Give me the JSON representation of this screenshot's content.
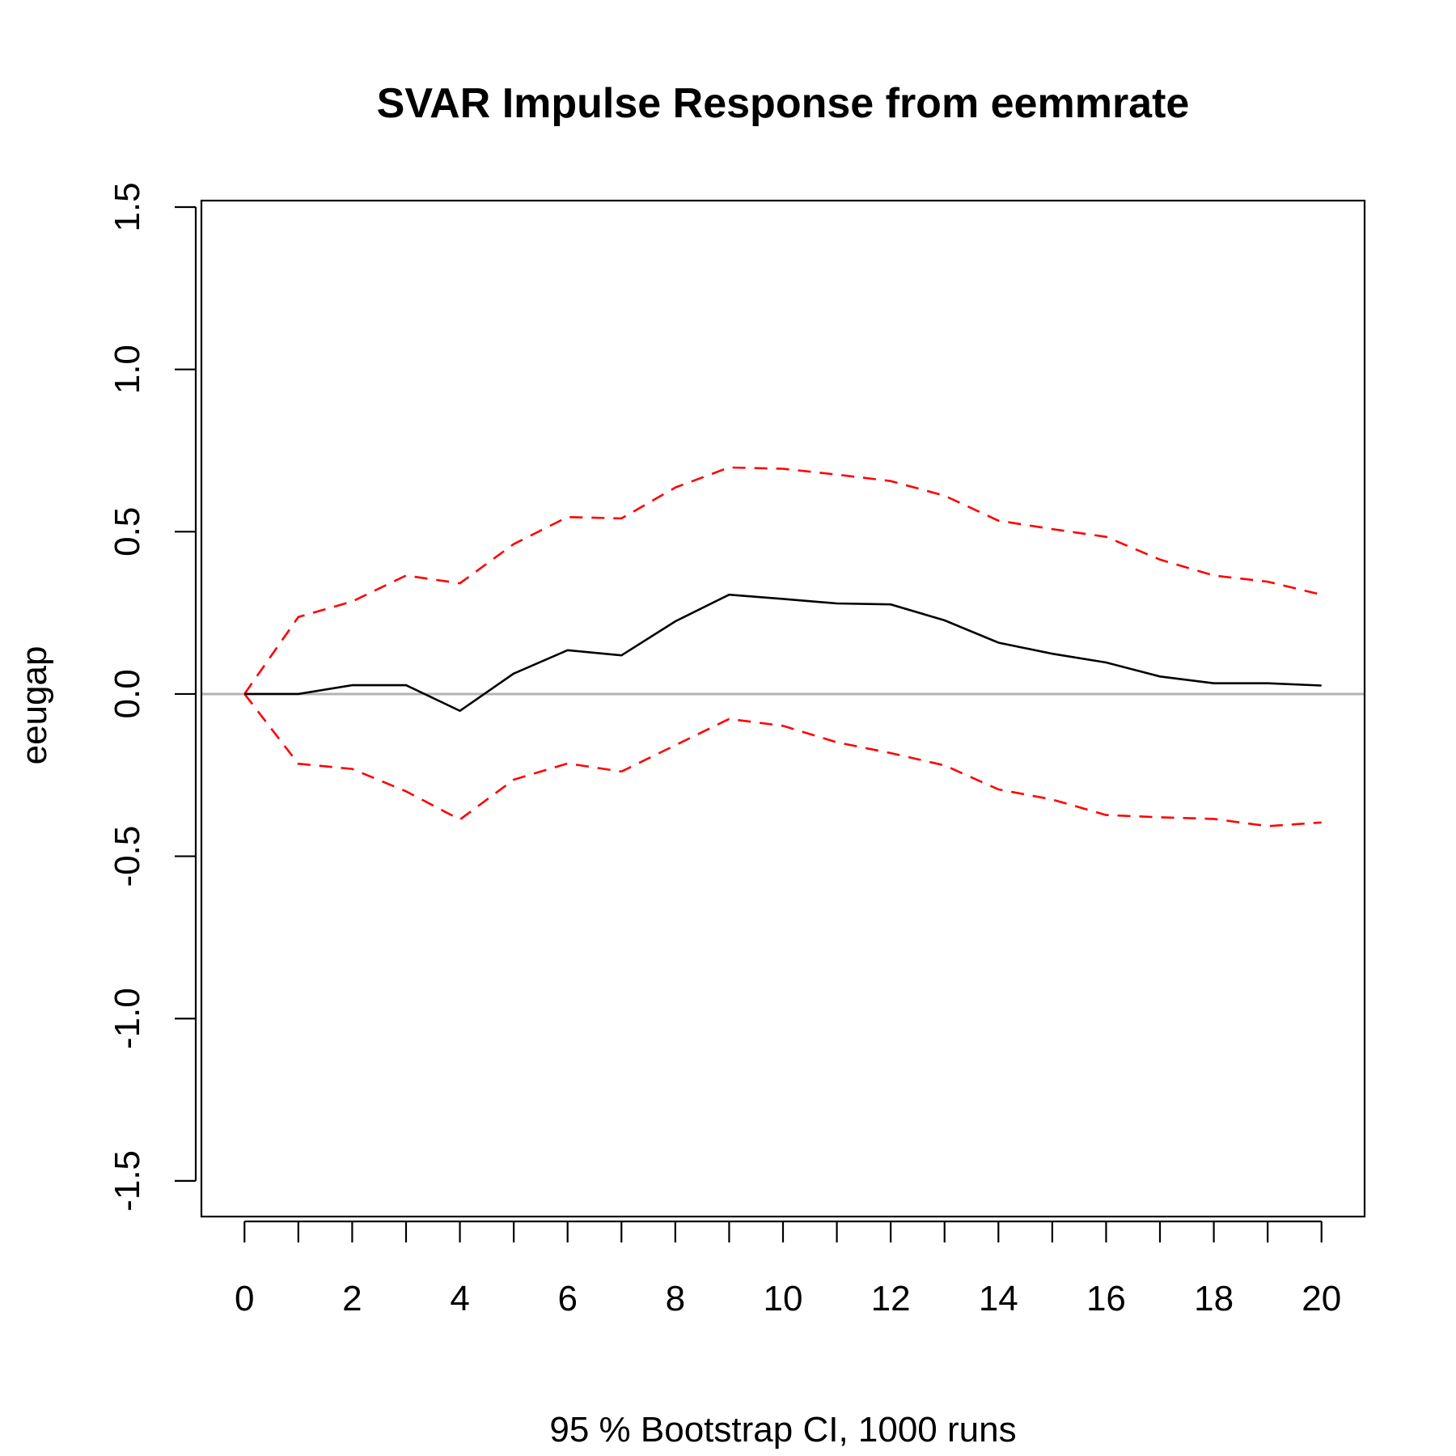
{
  "chart_data": {
    "type": "line",
    "title": "SVAR Impulse Response from eemmrate",
    "xlabel": "95 % Bootstrap CI,  1000 runs",
    "ylabel": "eeugap",
    "x": [
      0,
      1,
      2,
      3,
      4,
      5,
      6,
      7,
      8,
      9,
      10,
      11,
      12,
      13,
      14,
      15,
      16,
      17,
      18,
      19,
      20
    ],
    "xticks": [
      0,
      2,
      4,
      6,
      8,
      10,
      12,
      14,
      16,
      18,
      20
    ],
    "yticks": [
      -1.5,
      -1.0,
      -0.5,
      0.0,
      0.5,
      1.0,
      1.5
    ],
    "ytick_labels": [
      "-1.5",
      "-1.0",
      "-0.5",
      "0.0",
      "0.5",
      "1.0",
      "1.5"
    ],
    "xlim": [
      -0.8,
      20.8
    ],
    "ylim": [
      -1.61,
      1.52
    ],
    "grid": false,
    "reference_line": {
      "y": 0,
      "color": "#b3b3b3"
    },
    "series": [
      {
        "role": "irf",
        "color": "#000000",
        "style": "solid",
        "values": [
          0.0,
          0.0,
          0.027,
          0.027,
          -0.052,
          0.063,
          0.135,
          0.119,
          0.224,
          0.306,
          0.293,
          0.279,
          0.276,
          0.227,
          0.158,
          0.124,
          0.097,
          0.054,
          0.033,
          0.033,
          0.026
        ]
      },
      {
        "role": "upper",
        "color": "#ff0000",
        "style": "dashed",
        "values": [
          0.0,
          0.237,
          0.285,
          0.365,
          0.341,
          0.462,
          0.545,
          0.541,
          0.636,
          0.698,
          0.694,
          0.676,
          0.656,
          0.611,
          0.534,
          0.508,
          0.484,
          0.414,
          0.365,
          0.346,
          0.306
        ]
      },
      {
        "role": "lower",
        "color": "#ff0000",
        "style": "dashed",
        "values": [
          0.0,
          -0.215,
          -0.231,
          -0.3,
          -0.387,
          -0.264,
          -0.214,
          -0.239,
          -0.158,
          -0.077,
          -0.098,
          -0.149,
          -0.182,
          -0.22,
          -0.294,
          -0.325,
          -0.373,
          -0.38,
          -0.385,
          -0.407,
          -0.396
        ]
      }
    ]
  }
}
